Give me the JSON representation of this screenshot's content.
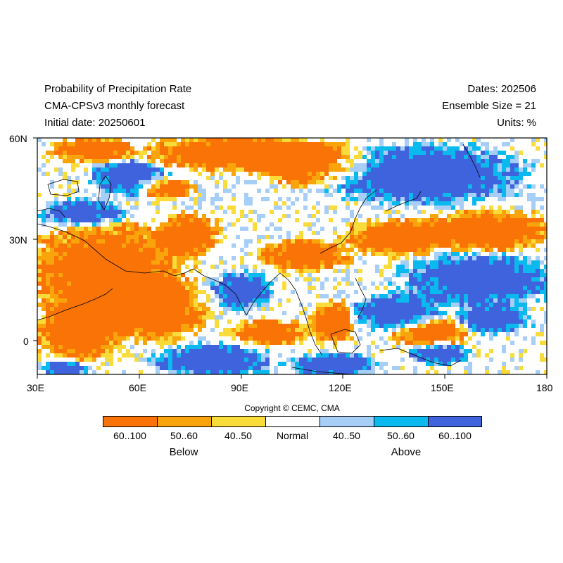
{
  "header": {
    "left": [
      "Probability of Precipitation Rate",
      "CMA-CPSv3 monthly forecast",
      "Initial date: 20250601"
    ],
    "right": [
      "Dates: 202506",
      "Ensemble Size = 21",
      "Units: %"
    ]
  },
  "axes": {
    "lon_labels": [
      "30E",
      "60E",
      "90E",
      "120E",
      "150E",
      "180"
    ],
    "lat_labels": [
      "60N",
      "30N",
      "0"
    ]
  },
  "copyright": "Copyright © CEMC, CMA",
  "legend": {
    "bins": [
      {
        "label": "60..100",
        "color": "#f97306"
      },
      {
        "label": "50..60",
        "color": "#f9a40a"
      },
      {
        "label": "40..50",
        "color": "#f9dc3a"
      },
      {
        "label": "Normal",
        "color": "#ffffff"
      },
      {
        "label": "40..50",
        "color": "#a6cef7"
      },
      {
        "label": "50..60",
        "color": "#0abaee"
      },
      {
        "label": "60..100",
        "color": "#3e63dc"
      }
    ],
    "below": "Below",
    "above": "Above"
  },
  "colors": {
    "below_strong": "#f97306",
    "below_mid": "#f9a40a",
    "below_weak": "#f9dc3a",
    "normal": "#ffffff",
    "above_weak": "#a6cef7",
    "above_mid": "#0abaee",
    "above_strong": "#3e63dc"
  }
}
